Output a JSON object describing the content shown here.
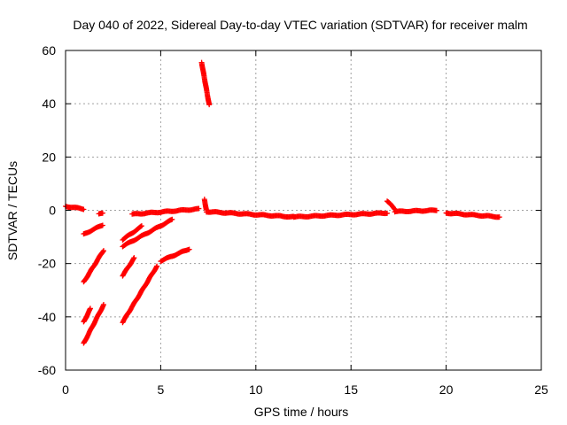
{
  "chart_data": {
    "type": "scatter",
    "title": "Day 040 of 2022, Sidereal Day-to-day VTEC variation (SDTVAR) for receiver malm",
    "xlabel": "GPS time / hours",
    "ylabel": "SDTVAR / TECUs",
    "xlim": [
      0,
      25
    ],
    "ylim": [
      -60,
      60
    ],
    "xticks": [
      0,
      5,
      10,
      15,
      20,
      25
    ],
    "yticks": [
      -60,
      -40,
      -20,
      0,
      20,
      40,
      60
    ],
    "grid": true,
    "marker": "plus",
    "color": "#ff0000",
    "segments": [
      {
        "x0": 0.0,
        "y0": 1.5,
        "x1": 0.95,
        "y1": 0.5
      },
      {
        "x0": 1.75,
        "y0": -1.5,
        "x1": 1.95,
        "y1": -1.0
      },
      {
        "x0": 0.95,
        "y0": -9.0,
        "x1": 1.95,
        "y1": -5.5
      },
      {
        "x0": 0.95,
        "y0": -27.0,
        "x1": 2.0,
        "y1": -15.0
      },
      {
        "x0": 0.95,
        "y0": -42.0,
        "x1": 1.3,
        "y1": -37.0
      },
      {
        "x0": 0.95,
        "y0": -50.0,
        "x1": 2.0,
        "y1": -35.5
      },
      {
        "x0": 3.0,
        "y0": -13.5,
        "x1": 5.6,
        "y1": -3.5
      },
      {
        "x0": 3.0,
        "y0": -11.0,
        "x1": 4.0,
        "y1": -6.0
      },
      {
        "x0": 3.0,
        "y0": -24.5,
        "x1": 3.6,
        "y1": -18.0
      },
      {
        "x0": 3.0,
        "y0": -42.0,
        "x1": 4.8,
        "y1": -21.0
      },
      {
        "x0": 5.0,
        "y0": -19.0,
        "x1": 6.5,
        "y1": -14.5
      },
      {
        "x0": 7.15,
        "y0": 55.5,
        "x1": 7.55,
        "y1": 39.5
      },
      {
        "x0": 3.5,
        "y0": -1.5,
        "x1": 7.0,
        "y1": 0.5
      },
      {
        "x0": 7.3,
        "y0": 4.0,
        "x1": 7.4,
        "y1": 0.0
      },
      {
        "x0": 7.4,
        "y0": -0.5,
        "x1": 12.0,
        "y1": -2.5
      },
      {
        "x0": 12.0,
        "y0": -2.5,
        "x1": 16.9,
        "y1": -1.0
      },
      {
        "x0": 16.9,
        "y0": 3.5,
        "x1": 17.3,
        "y1": 0.5
      },
      {
        "x0": 17.3,
        "y0": -0.5,
        "x1": 19.5,
        "y1": 0.0
      },
      {
        "x0": 20.0,
        "y0": -1.0,
        "x1": 22.8,
        "y1": -2.5
      }
    ]
  }
}
